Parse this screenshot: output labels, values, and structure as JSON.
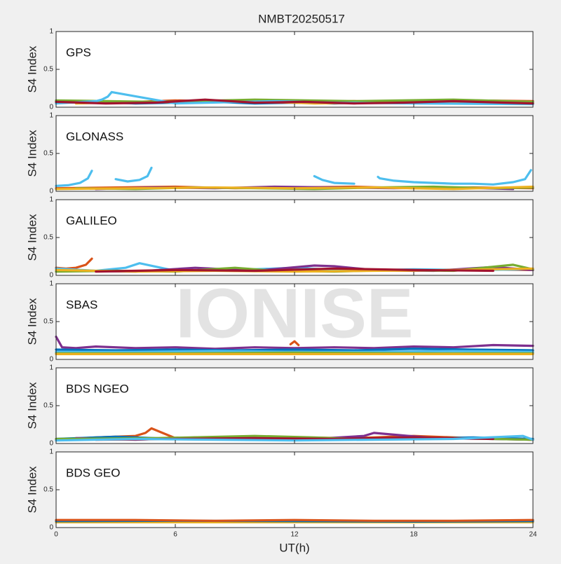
{
  "title": "NMBT20250517",
  "watermark": "IONISE",
  "xlabel": "UT(h)",
  "chart_data": [
    {
      "type": "line",
      "label": "GPS",
      "ylabel": "S4 Index",
      "xlim": [
        0,
        24
      ],
      "ylim": [
        0,
        1
      ],
      "xticks": [
        0,
        6,
        12,
        18,
        24
      ],
      "yticks": [
        0,
        0.5,
        1
      ],
      "series": [
        {
          "color": "#0072BD",
          "x": [
            0,
            2,
            4,
            6,
            8,
            10,
            12,
            14,
            16,
            18,
            20,
            22,
            24
          ],
          "values": [
            0.06,
            0.07,
            0.05,
            0.06,
            0.07,
            0.05,
            0.06,
            0.05,
            0.07,
            0.06,
            0.05,
            0.06,
            0.05
          ]
        },
        {
          "color": "#D95319",
          "x": [
            0,
            3,
            6,
            9,
            12,
            15,
            18,
            21,
            24
          ],
          "values": [
            0.08,
            0.06,
            0.09,
            0.07,
            0.06,
            0.08,
            0.07,
            0.09,
            0.08
          ]
        },
        {
          "color": "#EDB120",
          "x": [
            1,
            4,
            7,
            10,
            13,
            16,
            19,
            22,
            24
          ],
          "values": [
            0.05,
            0.07,
            0.06,
            0.08,
            0.05,
            0.06,
            0.07,
            0.05,
            0.06
          ]
        },
        {
          "color": "#77AC30",
          "x": [
            0,
            5,
            10,
            15,
            20,
            24
          ],
          "values": [
            0.09,
            0.07,
            0.1,
            0.08,
            0.1,
            0.07
          ]
        },
        {
          "color": "#4DBEEE",
          "x": [
            0,
            2,
            2.3,
            2.6,
            2.8,
            6,
            11,
            14,
            18,
            24
          ],
          "values": [
            0.05,
            0.08,
            0.1,
            0.14,
            0.2,
            0.05,
            0.08,
            0.06,
            0.05,
            0.04
          ]
        },
        {
          "color": "#A2142F",
          "x": [
            0,
            2.5,
            5,
            7.5,
            10,
            12.5,
            15,
            17.5,
            20,
            22.5,
            24
          ],
          "values": [
            0.07,
            0.05,
            0.06,
            0.1,
            0.06,
            0.07,
            0.05,
            0.06,
            0.08,
            0.06,
            0.05
          ]
        }
      ]
    },
    {
      "type": "line",
      "label": "GLONASS",
      "ylabel": "S4 Index",
      "xlim": [
        0,
        24
      ],
      "ylim": [
        0,
        1
      ],
      "xticks": [
        0,
        6,
        12,
        18,
        24
      ],
      "yticks": [
        0,
        0.5,
        1
      ],
      "series": [
        {
          "color": "#4DBEEE",
          "x": [
            0,
            0.6,
            1.2,
            1.6,
            1.8,
            2.5,
            3.0,
            3.6,
            4.2,
            4.6,
            4.8,
            5.5,
            13.0,
            13.4,
            14.0,
            15.0,
            15.5,
            16.2,
            16.3,
            17,
            18,
            19,
            20,
            21,
            22,
            23,
            23.6,
            23.9
          ],
          "values": [
            0.07,
            0.08,
            0.11,
            0.17,
            0.27,
            null,
            0.16,
            0.13,
            0.15,
            0.2,
            0.31,
            null,
            0.2,
            0.15,
            0.11,
            0.1,
            null,
            0.19,
            0.17,
            0.14,
            0.12,
            0.11,
            0.1,
            0.1,
            0.09,
            0.12,
            0.16,
            0.28
          ]
        },
        {
          "color": "#D95319",
          "x": [
            0,
            3,
            6,
            9,
            12,
            15,
            18,
            21,
            24
          ],
          "values": [
            0.04,
            0.05,
            0.06,
            0.04,
            0.05,
            0.06,
            0.04,
            0.05,
            0.04
          ]
        },
        {
          "color": "#7E2F8E",
          "x": [
            2,
            5,
            8,
            11,
            14,
            17,
            20,
            23
          ],
          "values": [
            0.03,
            0.05,
            0.04,
            0.06,
            0.05,
            0.04,
            0.05,
            0.03
          ]
        },
        {
          "color": "#77AC30",
          "x": [
            1,
            4,
            7,
            10,
            13,
            16,
            19,
            22,
            24
          ],
          "values": [
            0.04,
            0.03,
            0.05,
            0.04,
            0.03,
            0.05,
            0.06,
            0.04,
            0.05
          ]
        },
        {
          "color": "#EDB120",
          "x": [
            0,
            4,
            8,
            12,
            16,
            20,
            24
          ],
          "values": [
            0.03,
            0.04,
            0.05,
            0.04,
            0.05,
            0.03,
            0.06
          ]
        }
      ]
    },
    {
      "type": "line",
      "label": "GALILEO",
      "ylabel": "S4 Index",
      "xlim": [
        0,
        24
      ],
      "ylim": [
        0,
        1
      ],
      "xticks": [
        0,
        6,
        12,
        18,
        24
      ],
      "yticks": [
        0,
        0.5,
        1
      ],
      "series": [
        {
          "color": "#D95319",
          "x": [
            0,
            0.5,
            1,
            1.5,
            1.8,
            3,
            6,
            9,
            12,
            15,
            18,
            21,
            24
          ],
          "values": [
            0.1,
            0.09,
            0.1,
            0.14,
            0.22,
            null,
            0.07,
            0.06,
            0.08,
            0.07,
            0.06,
            0.08,
            0.07
          ]
        },
        {
          "color": "#4DBEEE",
          "x": [
            0,
            2,
            3.5,
            4.2,
            6,
            9,
            12,
            15,
            18,
            21,
            24
          ],
          "values": [
            0.09,
            0.06,
            0.1,
            0.16,
            0.06,
            0.07,
            0.1,
            0.06,
            0.08,
            0.07,
            0.08
          ]
        },
        {
          "color": "#7E2F8E",
          "x": [
            1,
            4,
            7,
            10,
            13,
            14,
            16,
            19,
            22,
            24
          ],
          "values": [
            0.06,
            0.05,
            0.1,
            0.06,
            0.13,
            0.12,
            0.07,
            0.06,
            0.11,
            0.07
          ]
        },
        {
          "color": "#77AC30",
          "x": [
            0,
            3,
            6,
            9,
            11,
            14,
            17,
            20,
            23,
            24
          ],
          "values": [
            0.05,
            0.06,
            0.05,
            0.1,
            0.06,
            0.05,
            0.07,
            0.06,
            0.14,
            0.08
          ]
        },
        {
          "color": "#EDB120",
          "x": [
            0,
            4,
            8,
            12,
            16,
            20,
            24
          ],
          "values": [
            0.07,
            0.05,
            0.06,
            0.05,
            0.06,
            0.07,
            0.09
          ]
        },
        {
          "color": "#A2142F",
          "x": [
            2,
            6,
            10,
            14,
            18,
            22
          ],
          "values": [
            0.05,
            0.07,
            0.06,
            0.09,
            0.07,
            0.06
          ]
        }
      ]
    },
    {
      "type": "line",
      "label": "SBAS",
      "ylabel": "S4 Index",
      "xlim": [
        0,
        24
      ],
      "ylim": [
        0,
        1
      ],
      "xticks": [
        0,
        6,
        12,
        18,
        24
      ],
      "yticks": [
        0,
        0.5,
        1
      ],
      "series": [
        {
          "color": "#7E2F8E",
          "x": [
            0,
            0.3,
            1,
            2,
            4,
            6,
            8,
            10,
            12,
            14,
            16,
            18,
            20,
            22,
            24
          ],
          "values": [
            0.3,
            0.16,
            0.15,
            0.17,
            0.15,
            0.16,
            0.14,
            0.16,
            0.15,
            0.16,
            0.15,
            0.17,
            0.16,
            0.19,
            0.18
          ]
        },
        {
          "color": "#0072BD",
          "x": [
            0,
            3,
            6,
            9,
            12,
            15,
            18,
            21,
            24
          ],
          "values": [
            0.13,
            0.12,
            0.13,
            0.12,
            0.13,
            0.12,
            0.14,
            0.13,
            0.12
          ]
        },
        {
          "color": "#4DBEEE",
          "x": [
            0,
            4,
            8,
            12,
            16,
            20,
            24
          ],
          "values": [
            0.1,
            0.1,
            0.11,
            0.1,
            0.1,
            0.11,
            0.1
          ]
        },
        {
          "color": "#77AC30",
          "x": [
            0,
            6,
            12,
            18,
            24
          ],
          "values": [
            0.08,
            0.08,
            0.09,
            0.08,
            0.08
          ]
        },
        {
          "color": "#EDB120",
          "x": [
            0,
            12,
            24
          ],
          "values": [
            0.07,
            0.07,
            0.07
          ]
        },
        {
          "color": "#D95319",
          "x": [
            11.8,
            12,
            12.2
          ],
          "values": [
            0.2,
            0.24,
            0.19
          ]
        }
      ]
    },
    {
      "type": "line",
      "label": "BDS NGEO",
      "ylabel": "S4 Index",
      "xlim": [
        0,
        24
      ],
      "ylim": [
        0,
        1
      ],
      "xticks": [
        0,
        6,
        12,
        18,
        24
      ],
      "yticks": [
        0,
        0.5,
        1
      ],
      "series": [
        {
          "color": "#D95319",
          "x": [
            0,
            2,
            4,
            4.5,
            4.8,
            6,
            9,
            12,
            15,
            18,
            21,
            24
          ],
          "values": [
            0.05,
            0.08,
            0.1,
            0.14,
            0.2,
            0.07,
            0.06,
            0.08,
            0.07,
            0.1,
            0.07,
            0.05
          ]
        },
        {
          "color": "#0072BD",
          "x": [
            0,
            3,
            6,
            9,
            12,
            15,
            18,
            21,
            24
          ],
          "values": [
            0.06,
            0.09,
            0.06,
            0.08,
            0.05,
            0.07,
            0.06,
            0.08,
            0.06
          ]
        },
        {
          "color": "#7E2F8E",
          "x": [
            1,
            4,
            7,
            10,
            13,
            15.5,
            16,
            19,
            22,
            24
          ],
          "values": [
            0.07,
            0.05,
            0.08,
            0.07,
            0.06,
            0.1,
            0.14,
            0.07,
            0.06,
            0.05
          ]
        },
        {
          "color": "#77AC30",
          "x": [
            0,
            5,
            10,
            13,
            15,
            20,
            24
          ],
          "values": [
            0.06,
            0.07,
            0.1,
            0.08,
            0.06,
            0.07,
            0.05
          ]
        },
        {
          "color": "#A2142F",
          "x": [
            2,
            6,
            10,
            14,
            18,
            22
          ],
          "values": [
            0.05,
            0.06,
            0.07,
            0.06,
            0.08,
            0.06
          ]
        },
        {
          "color": "#4DBEEE",
          "x": [
            0,
            4,
            8,
            12,
            16,
            20,
            23.5,
            24
          ],
          "values": [
            0.04,
            0.06,
            0.05,
            0.04,
            0.05,
            0.06,
            0.1,
            0.05
          ]
        }
      ]
    },
    {
      "type": "line",
      "label": "BDS GEO",
      "ylabel": "S4 Index",
      "xlim": [
        0,
        24
      ],
      "ylim": [
        0,
        1
      ],
      "xticks": [
        {
          "value": 0,
          "label": "0"
        },
        6,
        12,
        18,
        24
      ],
      "yticks": [
        0,
        0.5,
        1
      ],
      "series": [
        {
          "color": "#EDB120",
          "x": [
            0,
            6,
            12,
            18,
            24
          ],
          "values": [
            0.07,
            0.07,
            0.07,
            0.07,
            0.07
          ]
        },
        {
          "color": "#0072BD",
          "x": [
            0,
            6,
            12,
            18,
            24
          ],
          "values": [
            0.085,
            0.09,
            0.085,
            0.08,
            0.085
          ]
        },
        {
          "color": "#D95319",
          "x": [
            0,
            4,
            8,
            12,
            16,
            20,
            24
          ],
          "values": [
            0.1,
            0.1,
            0.09,
            0.1,
            0.09,
            0.09,
            0.1
          ]
        }
      ]
    }
  ]
}
